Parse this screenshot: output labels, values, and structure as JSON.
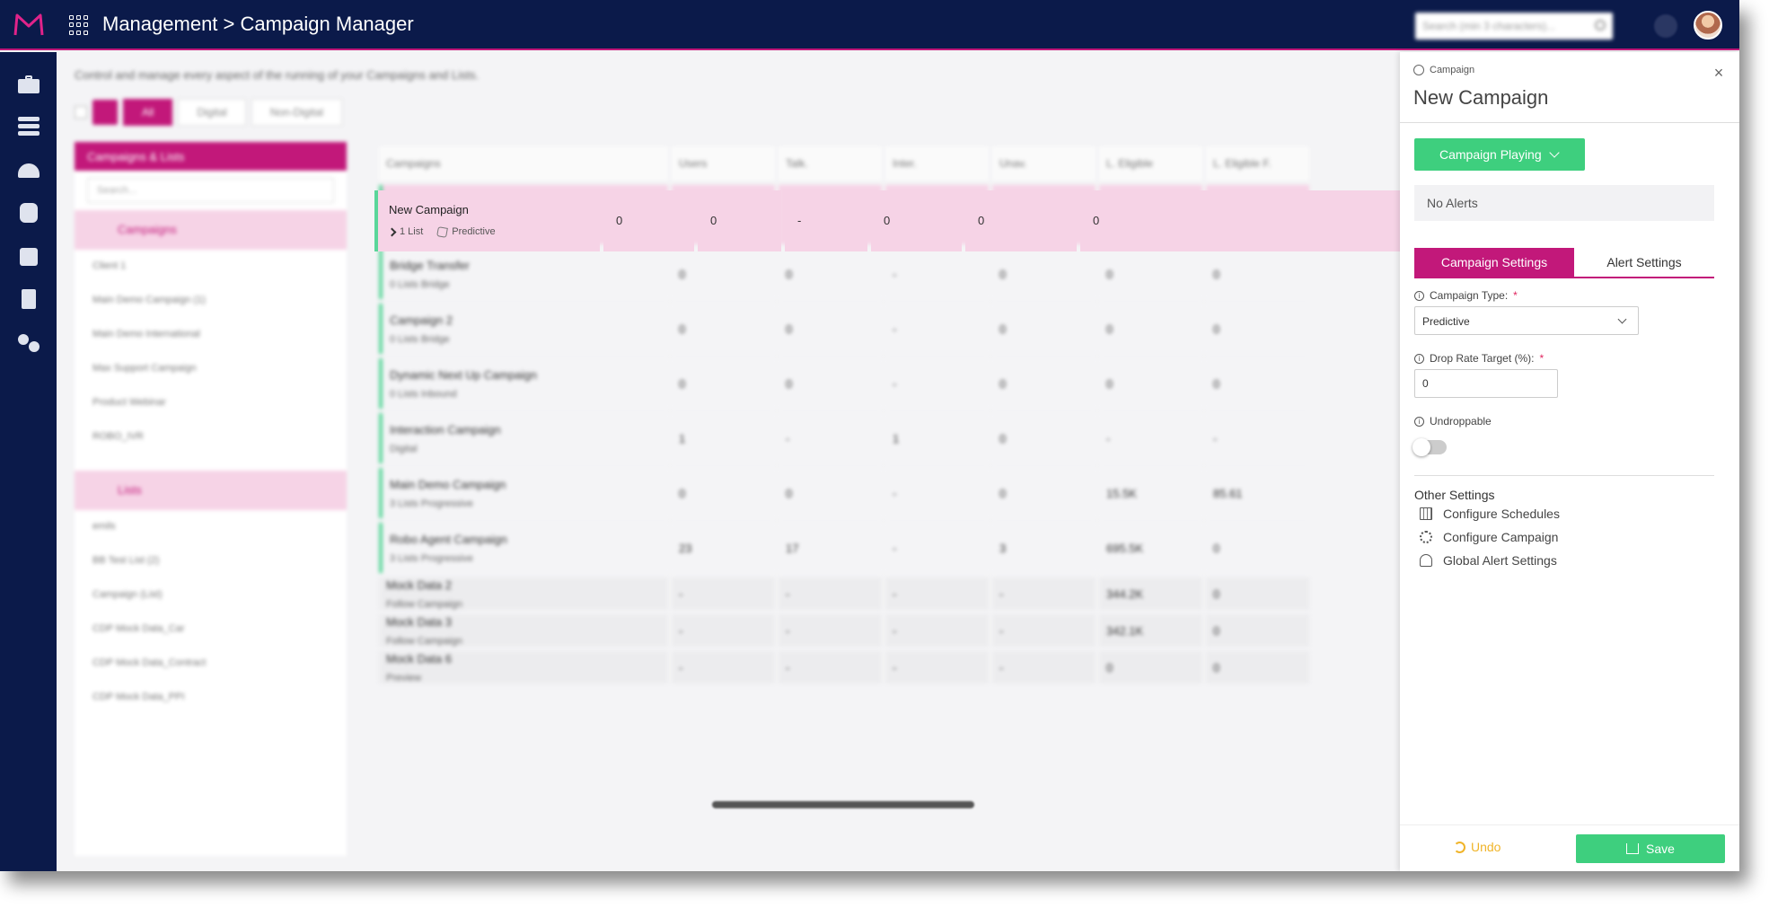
{
  "header": {
    "title": "Management > Campaign Manager",
    "search_placeholder": "Search (min 3 characters)..."
  },
  "main": {
    "intro": "Control and manage every aspect of the running of your Campaigns and Lists.",
    "filters": [
      "All",
      "Digital",
      "Non-Digital"
    ],
    "sidebar": {
      "title": "Campaigns & Lists",
      "search_placeholder": "Search...",
      "campaigns_label": "Campaigns",
      "campaign_items": [
        "Client 1",
        "Main Demo Campaign (1)",
        "Main Demo International",
        "Max Support Campaign",
        "Product Webinar",
        "ROBO_IVR"
      ],
      "lists_label": "Lists",
      "list_items": [
        "emils",
        "BB Test List (2)",
        "Campaign (List)",
        "CDP Mock Data_Car",
        "CDP Mock Data_Contract",
        "CDP Mock Data_PPI"
      ]
    },
    "grid": {
      "columns": [
        "Campaigns",
        "Users",
        "Talk.",
        "Inter.",
        "Unav.",
        "L. Eligible",
        "L. Eligible F."
      ],
      "selected": {
        "name": "New Campaign",
        "lists": "1 List",
        "type": "Predictive",
        "values": [
          "0",
          "0",
          "-",
          "0",
          "0",
          "0"
        ]
      },
      "rows": [
        {
          "name": "Bridge Transfer",
          "sub": "0 Lists  Bridge",
          "values": [
            "0",
            "0",
            "-",
            "0",
            "0",
            "0"
          ]
        },
        {
          "name": "Campaign 2",
          "sub": "0 Lists  Bridge",
          "values": [
            "0",
            "0",
            "-",
            "0",
            "0",
            "0"
          ]
        },
        {
          "name": "Dynamic Next Up Campaign",
          "sub": "0 Lists  Inbound",
          "values": [
            "0",
            "0",
            "-",
            "0",
            "0",
            "0"
          ]
        },
        {
          "name": "Interaction Campaign",
          "sub": "Digital",
          "values": [
            "1",
            "-",
            "1",
            "0",
            "-",
            "-"
          ]
        },
        {
          "name": "Main Demo Campaign",
          "sub": "3 Lists  Progressive",
          "values": [
            "0",
            "0",
            "-",
            "0",
            "15.5K",
            "85.61"
          ]
        },
        {
          "name": "Robo Agent Campaign",
          "sub": "3 Lists  Progressive",
          "values": [
            "23",
            "17",
            "-",
            "3",
            "695.5K",
            "0"
          ]
        }
      ],
      "small_rows": [
        {
          "name": "Mock Data 2",
          "sub": "Follow Campaign",
          "values": [
            "-",
            "-",
            "-",
            "-",
            "344.2K",
            "0"
          ]
        },
        {
          "name": "Mock Data 3",
          "sub": "Follow Campaign",
          "values": [
            "-",
            "-",
            "-",
            "-",
            "342.1K",
            "0"
          ]
        },
        {
          "name": "Mock Data 6",
          "sub": "Preview",
          "values": [
            "-",
            "-",
            "-",
            "-",
            "0",
            "0"
          ]
        }
      ]
    }
  },
  "side_panel": {
    "kicker": "Campaign",
    "title": "New Campaign",
    "status_button": "Campaign Playing",
    "alerts_text": "No Alerts",
    "tabs": {
      "campaign_settings": "Campaign Settings",
      "alert_settings": "Alert Settings"
    },
    "campaign_type": {
      "label": "Campaign Type:",
      "value": "Predictive"
    },
    "drop_rate": {
      "label": "Drop Rate Target (%):",
      "value": "0"
    },
    "undroppable": {
      "label": "Undroppable",
      "on": false
    },
    "other_settings": {
      "title": "Other Settings",
      "links": [
        "Configure Schedules",
        "Configure Campaign",
        "Global Alert Settings"
      ]
    },
    "footer": {
      "undo": "Undo",
      "save": "Save"
    }
  },
  "colors": {
    "brand": "#c2187a",
    "nav": "#0b1a4a",
    "success": "#3ecf7e",
    "warning": "#f0b429"
  }
}
